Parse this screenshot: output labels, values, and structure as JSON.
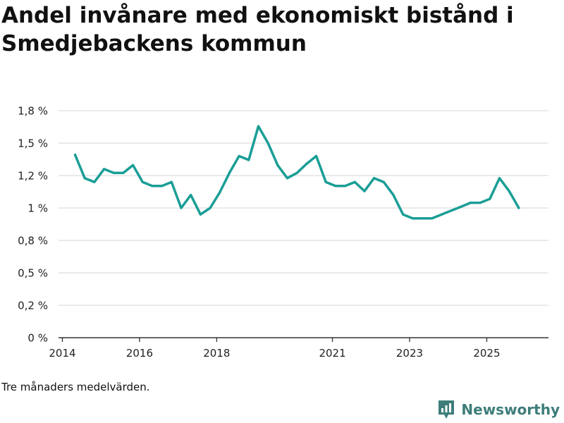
{
  "title": "Andel invånare med ekonomiskt bistånd i Smedjebackens kommun",
  "footnote": "Tre månaders medelvärden.",
  "brand": {
    "name": "Newsworthy",
    "icon": "newsworthy-logo-icon"
  },
  "colors": {
    "line": "#1a9e96",
    "grid": "#dddddd",
    "axis": "#333333",
    "brand": "#3d7d7a"
  },
  "chart_data": {
    "type": "line",
    "title": "Andel invånare med ekonomiskt bistånd i Smedjebackens kommun",
    "xlabel": "",
    "ylabel": "",
    "xlim": [
      2013.9,
      2026.6
    ],
    "ylim": [
      0,
      1.75
    ],
    "x_ticks": [
      {
        "value": 2014,
        "label": "2014"
      },
      {
        "value": 2016,
        "label": "2016"
      },
      {
        "value": 2018,
        "label": "2018"
      },
      {
        "value": 2021,
        "label": "2021"
      },
      {
        "value": 2023,
        "label": "2023"
      },
      {
        "value": 2025,
        "label": "2025"
      }
    ],
    "y_ticks": [
      {
        "value": 0,
        "label": "0 %"
      },
      {
        "value": 0.25,
        "label": "0,2 %"
      },
      {
        "value": 0.5,
        "label": "0,5 %"
      },
      {
        "value": 0.75,
        "label": "0,8 %"
      },
      {
        "value": 1.0,
        "label": "1 %"
      },
      {
        "value": 1.25,
        "label": "1,2 %"
      },
      {
        "value": 1.5,
        "label": "1,5 %"
      },
      {
        "value": 1.75,
        "label": "1,8 %"
      }
    ],
    "grid": true,
    "series": [
      {
        "name": "Andel invånare med ekonomiskt bistånd",
        "x": [
          2014.33,
          2014.58,
          2014.83,
          2015.08,
          2015.33,
          2015.58,
          2015.83,
          2016.08,
          2016.33,
          2016.58,
          2016.83,
          2017.08,
          2017.33,
          2017.58,
          2017.83,
          2018.08,
          2018.33,
          2018.58,
          2018.83,
          2019.08,
          2019.33,
          2019.58,
          2019.83,
          2020.08,
          2020.33,
          2020.58,
          2020.83,
          2021.08,
          2021.33,
          2021.58,
          2021.83,
          2022.08,
          2022.33,
          2022.58,
          2022.83,
          2023.08,
          2023.33,
          2023.58,
          2023.83,
          2024.08,
          2024.33,
          2024.58,
          2024.83,
          2025.08,
          2025.33,
          2025.58,
          2025.83
        ],
        "values": [
          1.41,
          1.23,
          1.2,
          1.3,
          1.27,
          1.27,
          1.33,
          1.2,
          1.17,
          1.17,
          1.2,
          1.0,
          1.1,
          0.95,
          1.0,
          1.12,
          1.27,
          1.4,
          1.37,
          1.63,
          1.5,
          1.33,
          1.23,
          1.27,
          1.34,
          1.4,
          1.2,
          1.17,
          1.17,
          1.2,
          1.13,
          1.23,
          1.2,
          1.1,
          0.95,
          0.92,
          0.92,
          0.92,
          0.95,
          0.98,
          1.01,
          1.04,
          1.04,
          1.07,
          1.23,
          1.13,
          1.0
        ]
      }
    ]
  }
}
